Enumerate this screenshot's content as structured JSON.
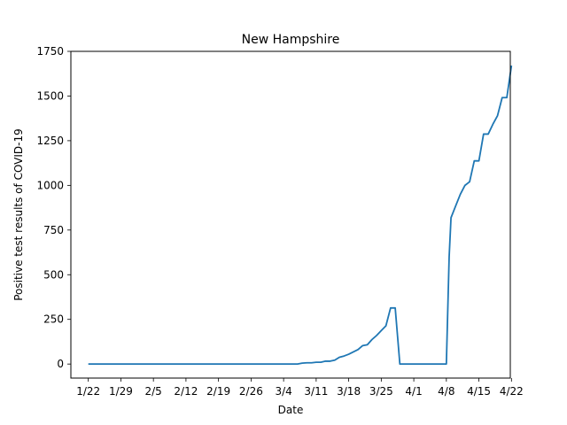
{
  "chart_data": {
    "type": "line",
    "title": "New Hampshire",
    "xlabel": "Date",
    "ylabel": "Positive test results of COVID-19",
    "xlim": [
      -3.75,
      90.75
    ],
    "ylim": [
      -78.5,
      1750
    ],
    "x_ticks": [
      {
        "x": 0,
        "label": "1/22"
      },
      {
        "x": 7,
        "label": "1/29"
      },
      {
        "x": 14,
        "label": "2/5"
      },
      {
        "x": 21,
        "label": "2/12"
      },
      {
        "x": 28,
        "label": "2/19"
      },
      {
        "x": 35,
        "label": "2/26"
      },
      {
        "x": 42,
        "label": "3/4"
      },
      {
        "x": 49,
        "label": "3/11"
      },
      {
        "x": 56,
        "label": "3/18"
      },
      {
        "x": 63,
        "label": "3/25"
      },
      {
        "x": 70,
        "label": "4/1"
      },
      {
        "x": 77,
        "label": "4/8"
      },
      {
        "x": 84,
        "label": "4/15"
      },
      {
        "x": 91,
        "label": "4/22"
      }
    ],
    "y_ticks": [
      {
        "y": 0,
        "label": "0"
      },
      {
        "y": 250,
        "label": "250"
      },
      {
        "y": 500,
        "label": "500"
      },
      {
        "y": 750,
        "label": "750"
      },
      {
        "y": 1000,
        "label": "1000"
      },
      {
        "y": 1250,
        "label": "1250"
      },
      {
        "y": 1500,
        "label": "1500"
      },
      {
        "y": 1750,
        "label": "1750"
      }
    ],
    "grid": false,
    "series": [
      {
        "name": "New Hampshire",
        "color": "#1f77b4",
        "x": [
          0,
          45,
          46,
          47,
          48,
          49,
          50,
          51,
          52,
          53,
          54,
          55,
          56,
          57,
          58,
          59,
          60,
          61,
          62,
          63,
          64,
          65,
          66,
          67,
          68,
          69,
          70,
          71,
          72,
          73,
          74,
          75,
          76,
          77,
          77.6,
          78,
          79,
          80,
          81,
          82,
          83,
          84,
          85,
          86,
          87,
          88,
          89,
          90,
          91
        ],
        "values": [
          0,
          0,
          5,
          7,
          7,
          10,
          10,
          16,
          16,
          22,
          38,
          45,
          55,
          68,
          81,
          103,
          108,
          137,
          160,
          187,
          214,
          314,
          314,
          0,
          0,
          0,
          0,
          0,
          0,
          0,
          0,
          0,
          0,
          0,
          600,
          819,
          885,
          950,
          1000,
          1020,
          1137,
          1137,
          1287,
          1287,
          1342,
          1390,
          1491,
          1491,
          1670
        ]
      }
    ]
  }
}
